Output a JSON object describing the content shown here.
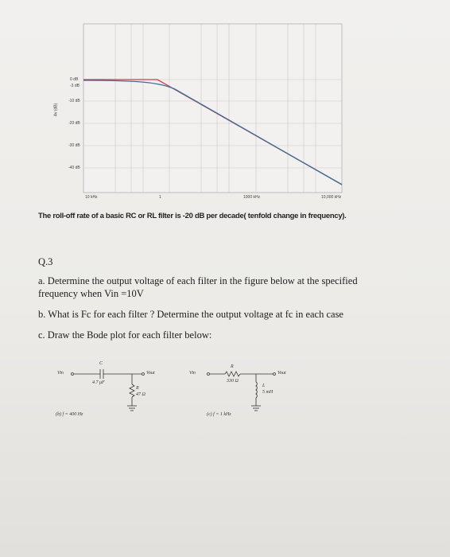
{
  "figure": {
    "y_labels": [
      "0 dB",
      "-3 dB",
      "-10 dB",
      "-20 dB",
      "-30 dB",
      "-40 dB"
    ],
    "y_axis_label": "Av (dB)",
    "x_labels": [
      "10 kHz",
      "1",
      "1000 kHz",
      "10,000 kHz"
    ]
  },
  "caption": "The roll-off rate of a basic RC or RL filter is -20 dB per decade( tenfold change in frequency).",
  "question": {
    "number": "Q.3",
    "parts": [
      "a. Determine the output voltage of each filter in the figure below at the specified frequency when Vin =10V",
      "b. What is Fc for each filter ? Determine the output voltage at fc in each case",
      "c. Draw the Bode plot for each filter below:"
    ]
  },
  "circuits": [
    {
      "input": "Vin",
      "series_label": "C",
      "series_value": "4.7 μF",
      "shunt_label": "R",
      "shunt_value": "47 Ω",
      "output": "Vout",
      "caption": "(b) f = 400 Hz"
    },
    {
      "input": "Vin",
      "series_label": "R",
      "series_value": "330 Ω",
      "shunt_label": "L",
      "shunt_value": "5 mH",
      "output": "Vout",
      "caption": "(c) f = 1 kHz"
    }
  ]
}
